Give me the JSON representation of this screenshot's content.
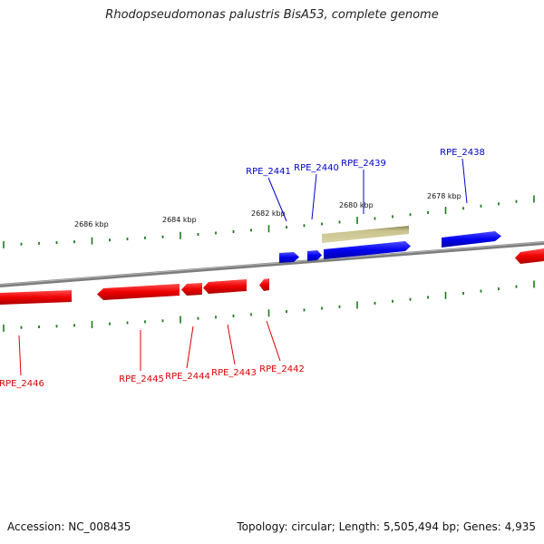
{
  "header": {
    "title": "Rhodopseudomonas palustris BisA53, complete genome"
  },
  "footer": {
    "accession": "Accession: NC_008435",
    "genome_info": "Topology: circular; Length: 5,505,494 bp; Genes: 4,935"
  },
  "colors": {
    "forward_gene": "#0000ee",
    "reverse_gene": "#ee0000",
    "feature_bar": "#c2bd84",
    "backbone": "#7a7a7a",
    "ticks": "#1c7a1c"
  },
  "ruler": {
    "labels": [
      "2686 kbp",
      "2684 kbp",
      "2682 kbp",
      "2680 kbp",
      "2678 kbp"
    ]
  },
  "genes": {
    "forward": [
      "RPE_2441",
      "RPE_2440",
      "RPE_2439",
      "RPE_2438"
    ],
    "reverse": [
      "RPE_2446",
      "RPE_2445",
      "RPE_2444",
      "RPE_2443",
      "RPE_2442"
    ]
  }
}
